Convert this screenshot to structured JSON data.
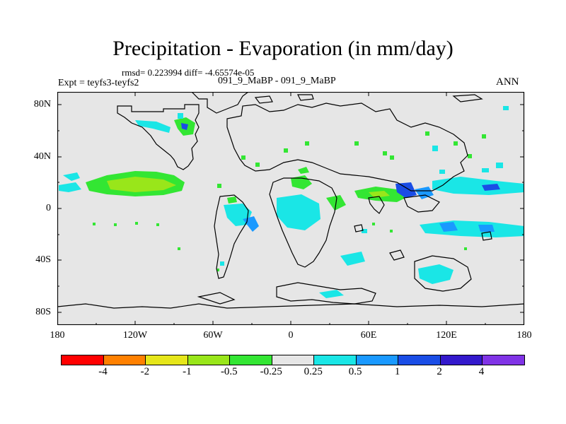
{
  "title": "Precipitation - Evaporation (in mm/day)",
  "stats": "rmsd= 0.223994 diff= -4.65574e-05",
  "expt": "Expt = teyfs3-teyfs2",
  "cases": "091_9_MaBP - 091_9_MaBP",
  "period": "ANN",
  "lat_labels": [
    "80N",
    "40N",
    "0",
    "40S",
    "80S"
  ],
  "lon_labels": [
    "180",
    "120W",
    "60W",
    "0",
    "60E",
    "120E",
    "180"
  ],
  "colorbar": {
    "colors": [
      "#ff0000",
      "#ff8000",
      "#e6e61a",
      "#99e61a",
      "#33e633",
      "#e6e6e6",
      "#1ae6e6",
      "#1a99ff",
      "#1a4de6",
      "#3319cc",
      "#8033e6"
    ],
    "labels": [
      "-4",
      "-2",
      "-1",
      "-0.5",
      "-0.25",
      "0.25",
      "0.5",
      "1",
      "2",
      "4"
    ]
  },
  "map_colors": {
    "background": "#e6e6e6",
    "cyan": "#1ae6e6",
    "light_blue": "#1a99ff",
    "blue": "#1a4de6",
    "green": "#33e633",
    "light_green": "#99e61a"
  }
}
